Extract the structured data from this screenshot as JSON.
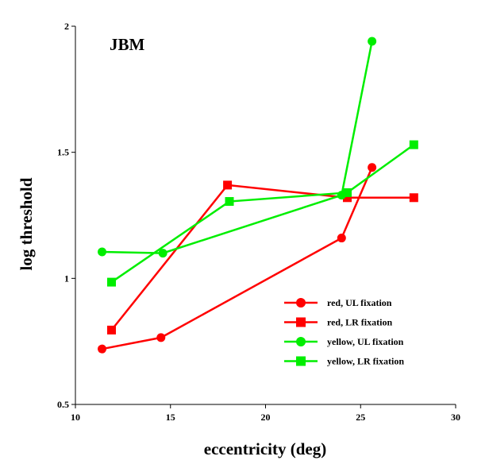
{
  "chart_data": {
    "type": "line",
    "title": "JBM",
    "xlabel": "eccentricity (deg)",
    "ylabel": "log threshold",
    "xlim": [
      10,
      30
    ],
    "ylim": [
      0.5,
      2
    ],
    "xticks": [
      "10",
      "15",
      "20",
      "25",
      "30"
    ],
    "yticks": [
      "0.5",
      "1",
      "1.5",
      "2"
    ],
    "grid": false,
    "legend_position": "lower-right",
    "series": [
      {
        "name": "red, UL fixation",
        "color": "#ff0000",
        "marker": "circle",
        "x": [
          11.4,
          14.5,
          24.0,
          25.6
        ],
        "y": [
          0.72,
          0.765,
          1.16,
          1.44
        ]
      },
      {
        "name": "red, LR fixation",
        "color": "#ff0000",
        "marker": "square",
        "x": [
          11.9,
          18.0,
          24.3,
          27.8
        ],
        "y": [
          0.795,
          1.37,
          1.32,
          1.32
        ]
      },
      {
        "name": "yellow, UL fixation",
        "color": "#00ee00",
        "marker": "circle",
        "x": [
          11.4,
          14.6,
          24.0,
          25.6
        ],
        "y": [
          1.105,
          1.1,
          1.33,
          1.94
        ]
      },
      {
        "name": "yellow, LR fixation",
        "color": "#00ee00",
        "marker": "square",
        "x": [
          11.9,
          18.1,
          24.3,
          27.8
        ],
        "y": [
          0.985,
          1.305,
          1.34,
          1.53
        ]
      }
    ]
  }
}
